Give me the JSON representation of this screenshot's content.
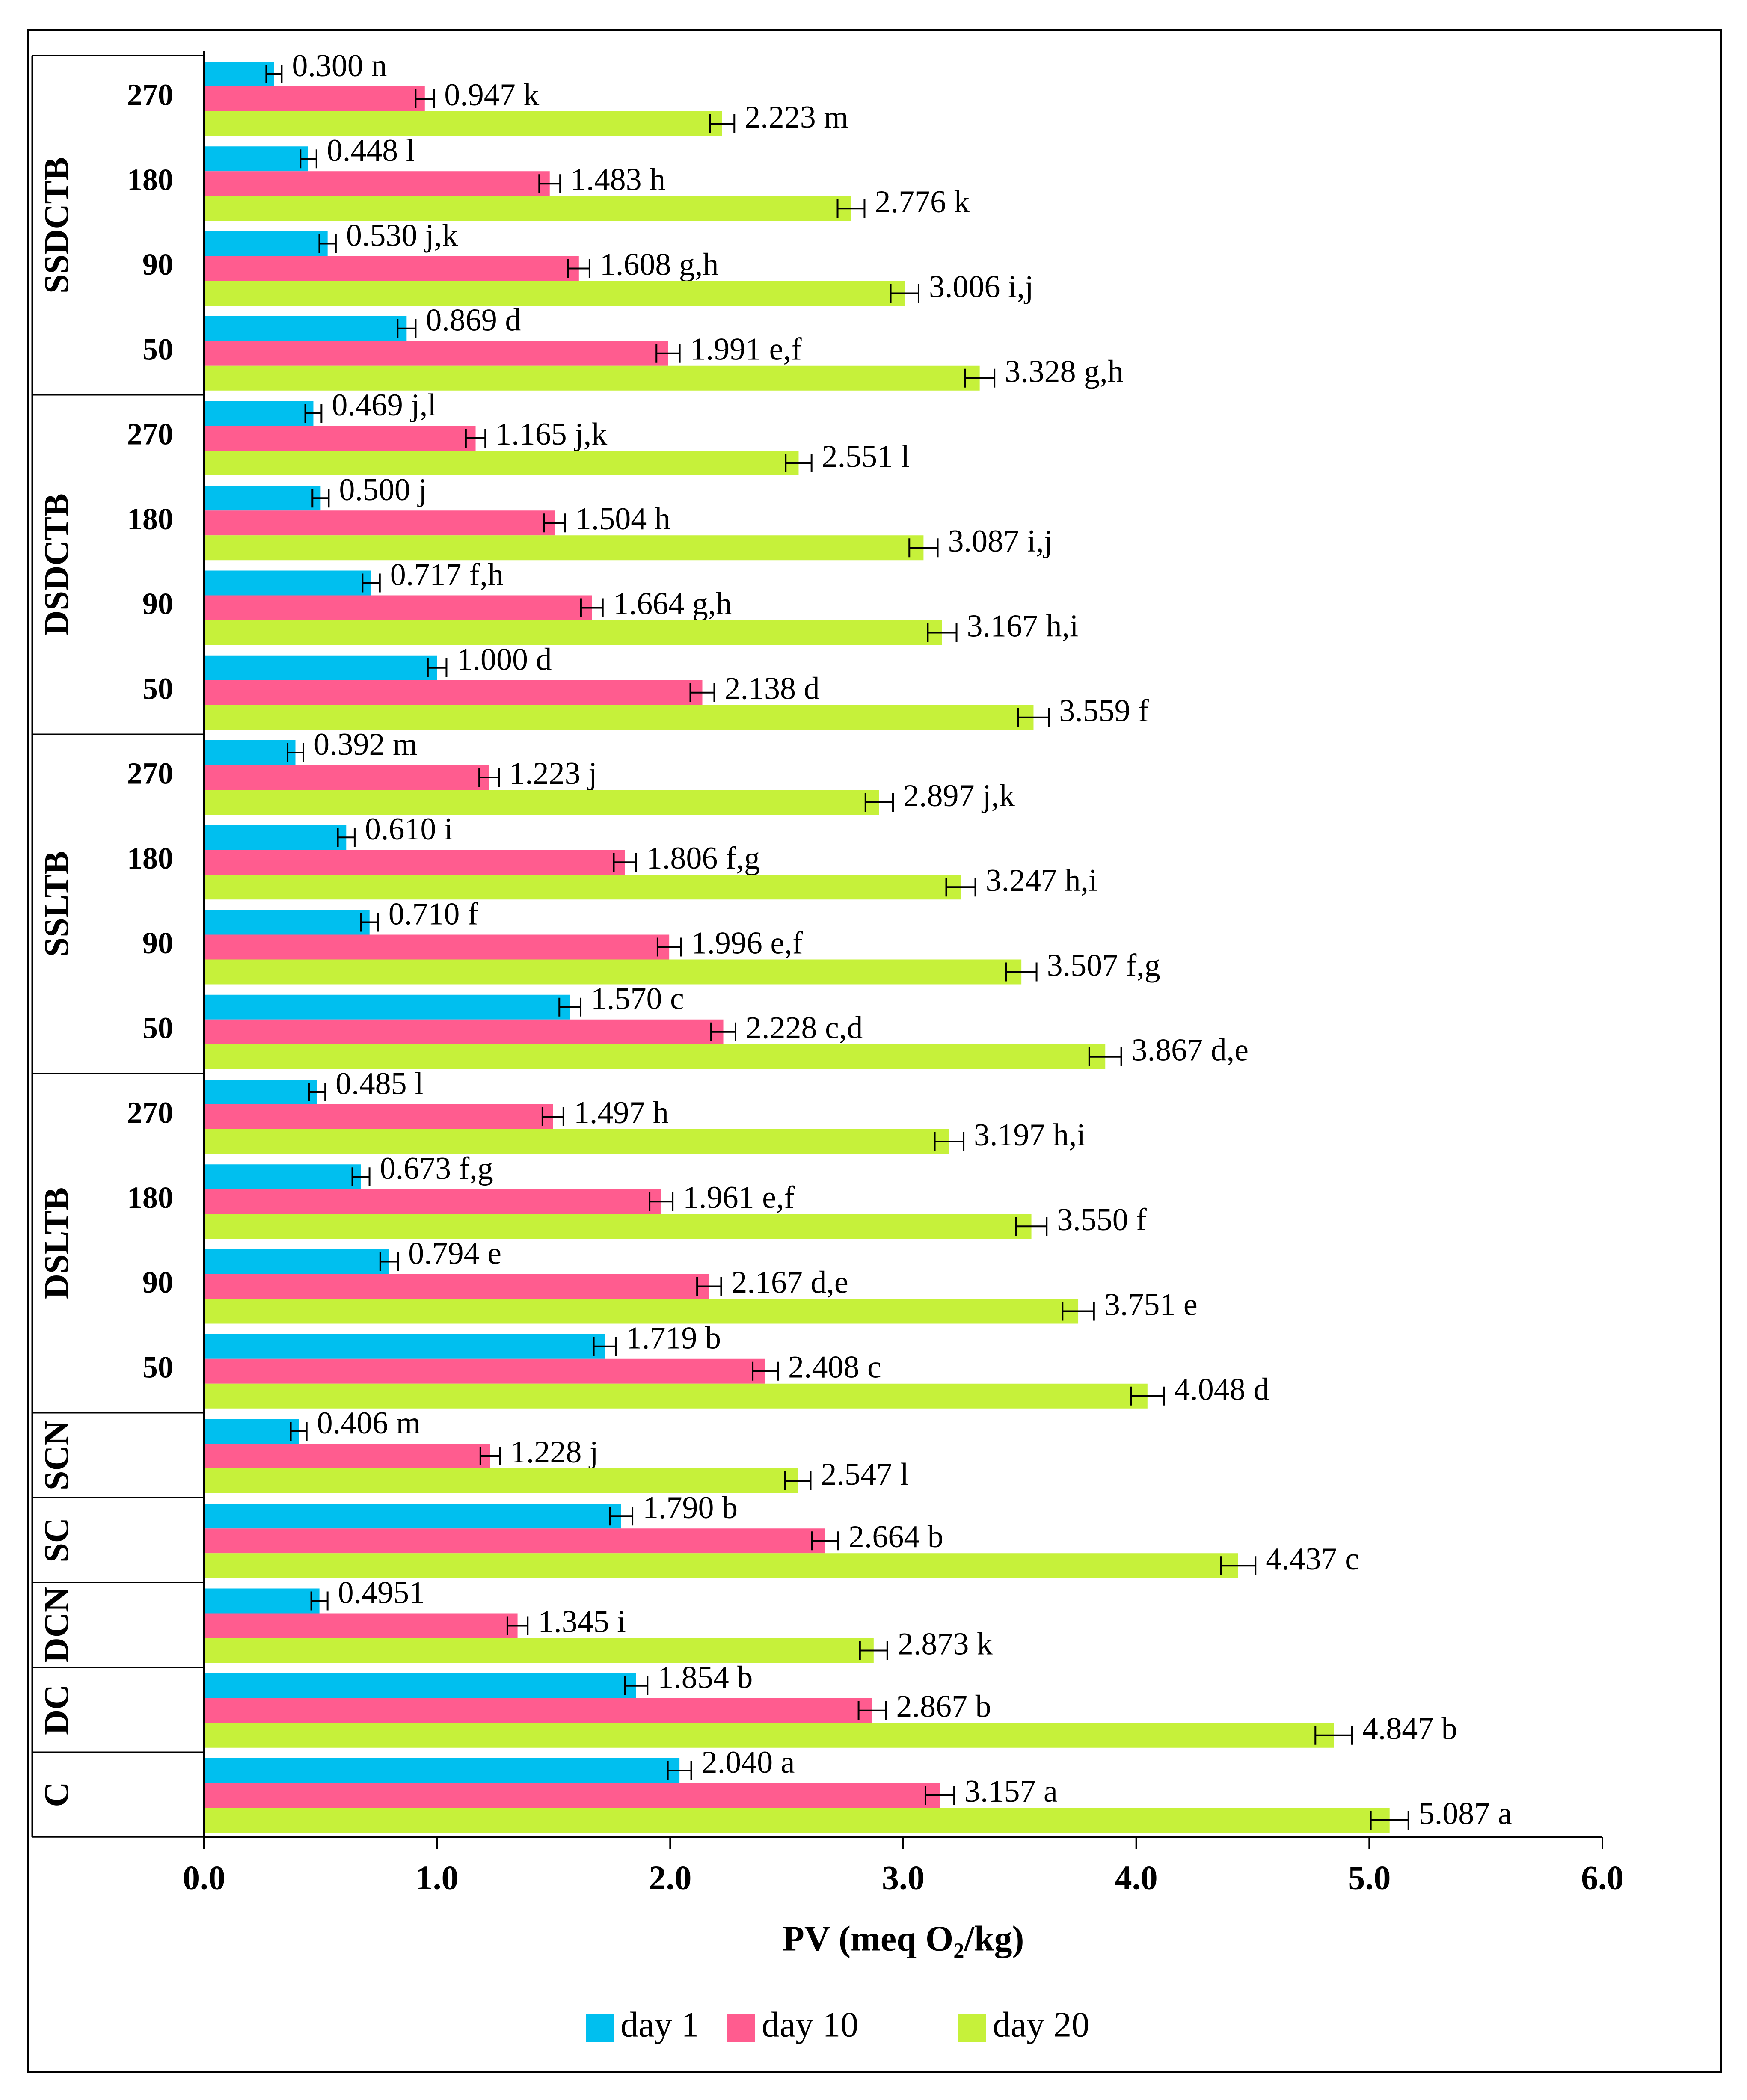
{
  "chart_data": {
    "type": "bar",
    "orientation": "horizontal",
    "xlabel": "PV (meq O₂/kg)",
    "xlim": [
      0,
      6
    ],
    "xticks": [
      "0.0",
      "1.0",
      "2.0",
      "3.0",
      "4.0",
      "5.0",
      "6.0"
    ],
    "grid": false,
    "legend_position": "bottom",
    "series_colors": [
      "#00bfef",
      "#ff5c8f",
      "#c6f13a"
    ],
    "series": [
      {
        "name": "day 1",
        "values": [
          0.3,
          0.448,
          0.53,
          0.869,
          0.469,
          0.5,
          0.717,
          1.0,
          0.392,
          0.61,
          0.71,
          1.57,
          0.485,
          0.673,
          0.794,
          1.719,
          0.406,
          1.79,
          0.495,
          1.854,
          2.04
        ],
        "labels": [
          "0.300",
          "0.448",
          "0.530",
          "0.869",
          "0.469",
          "0.500",
          "0.717",
          "1.000",
          "0.392",
          "0.610",
          "0.710",
          "1.570",
          "0.485",
          "0.673",
          "0.794",
          "1.719",
          "0.406",
          "1.790",
          "0.4951",
          "1.854",
          "2.040"
        ],
        "letters": [
          "n",
          "l",
          "j,k",
          "d",
          "j,l",
          "j",
          "f,h",
          "d",
          "m",
          "i",
          "f",
          "c",
          "l",
          "f,g",
          "e",
          "b",
          "m",
          "b",
          "",
          "b",
          "a"
        ]
      },
      {
        "name": "day 10",
        "values": [
          0.947,
          1.483,
          1.608,
          1.991,
          1.165,
          1.504,
          1.664,
          2.138,
          1.223,
          1.806,
          1.996,
          2.228,
          1.497,
          1.961,
          2.167,
          2.408,
          1.228,
          2.664,
          1.345,
          2.867,
          3.157
        ],
        "labels": [
          "0.947",
          "1.483",
          "1.608",
          "1.991",
          "1.165",
          "1.504",
          "1.664",
          "2.138",
          "1.223",
          "1.806",
          "1.996",
          "2.228",
          "1.497",
          "1.961",
          "2.167",
          "2.408",
          "1.228",
          "2.664",
          "1.345",
          "2.867",
          "3.157"
        ],
        "letters": [
          "k",
          "h",
          "g,h",
          "e,f",
          "j,k",
          "h",
          "g,h",
          "d",
          "j",
          "f,g",
          "e,f",
          "c,d",
          "h",
          "e,f",
          "d,e",
          "c",
          "j",
          "b",
          "i",
          "b",
          "a"
        ]
      },
      {
        "name": "day 20",
        "values": [
          2.223,
          2.776,
          3.006,
          3.328,
          2.551,
          3.087,
          3.167,
          3.559,
          2.897,
          3.247,
          3.507,
          3.867,
          3.197,
          3.55,
          3.751,
          4.048,
          2.547,
          4.437,
          2.873,
          4.847,
          5.087
        ],
        "labels": [
          "2.223",
          "2.776",
          "3.006",
          "3.328",
          "2.551",
          "3.087",
          "3.167",
          "3.559",
          "2.897",
          "3.247",
          "3.507",
          "3.867",
          "3.197",
          "3.550",
          "3.751",
          "4.048",
          "2.547",
          "4.437",
          "2.873",
          "4.847",
          "5.087"
        ],
        "letters": [
          "m",
          "k",
          "i,j",
          "g,h",
          "l",
          "i,j",
          "h,i",
          "f",
          "j,k",
          "h,i",
          "f,g",
          "d,e",
          "h,i",
          "f",
          "e",
          "d",
          "l",
          "c",
          "k",
          "b",
          "a"
        ]
      }
    ],
    "categories": [
      {
        "group": "SSDCTB",
        "sub": "270"
      },
      {
        "group": "SSDCTB",
        "sub": "180"
      },
      {
        "group": "SSDCTB",
        "sub": "90"
      },
      {
        "group": "SSDCTB",
        "sub": "50"
      },
      {
        "group": "DSDCTB",
        "sub": "270"
      },
      {
        "group": "DSDCTB",
        "sub": "180"
      },
      {
        "group": "DSDCTB",
        "sub": "90"
      },
      {
        "group": "DSDCTB",
        "sub": "50"
      },
      {
        "group": "SSLTB",
        "sub": "270"
      },
      {
        "group": "SSLTB",
        "sub": "180"
      },
      {
        "group": "SSLTB",
        "sub": "90"
      },
      {
        "group": "SSLTB",
        "sub": "50"
      },
      {
        "group": "DSLTB",
        "sub": "270"
      },
      {
        "group": "DSLTB",
        "sub": "180"
      },
      {
        "group": "DSLTB",
        "sub": "90"
      },
      {
        "group": "DSLTB",
        "sub": "50"
      },
      {
        "group": "SCN",
        "sub": ""
      },
      {
        "group": "SC",
        "sub": ""
      },
      {
        "group": "DCN",
        "sub": ""
      },
      {
        "group": "DC",
        "sub": ""
      },
      {
        "group": "C",
        "sub": ""
      }
    ],
    "groups": [
      "SSDCTB",
      "DSDCTB",
      "SSLTB",
      "DSLTB",
      "SCN",
      "SC",
      "DCN",
      "DC",
      "C"
    ]
  }
}
